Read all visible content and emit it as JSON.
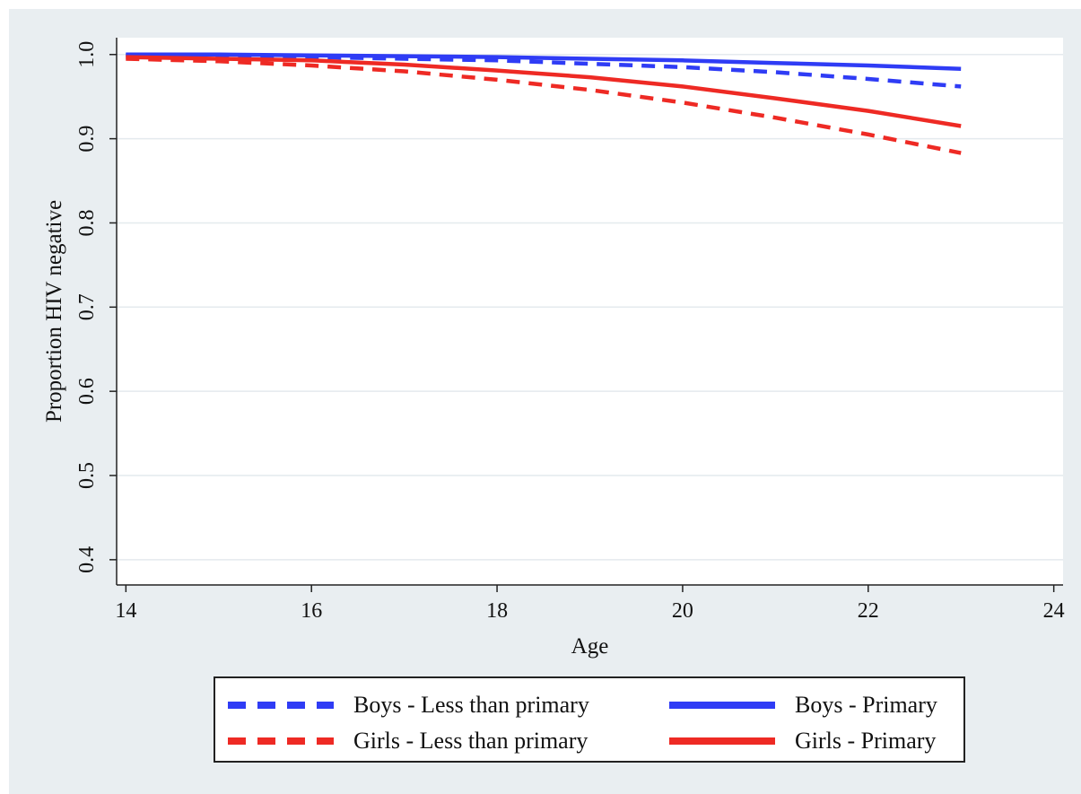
{
  "chart_data": {
    "type": "line",
    "xlabel": "Age",
    "ylabel": "Proportion HIV negative",
    "xlim": [
      13.9,
      24.1
    ],
    "ylim": [
      0.37,
      1.02
    ],
    "xticks": [
      "14",
      "16",
      "18",
      "20",
      "22",
      "24"
    ],
    "yticks": [
      "0.4",
      "0.5",
      "0.6",
      "0.7",
      "0.8",
      "0.9",
      "1.0"
    ],
    "grid": true,
    "legend_position": "bottom",
    "series": [
      {
        "name": "Boys - Less than primary",
        "color": "#2f3cf5",
        "style": "dashed",
        "x": [
          14,
          15,
          16,
          17,
          18,
          19,
          20,
          21,
          22,
          23
        ],
        "y": [
          0.999,
          0.998,
          0.997,
          0.995,
          0.993,
          0.989,
          0.985,
          0.979,
          0.971,
          0.962
        ]
      },
      {
        "name": "Boys - Primary",
        "color": "#2f3cf5",
        "style": "solid",
        "x": [
          14,
          15,
          16,
          17,
          18,
          19,
          20,
          21,
          22,
          23
        ],
        "y": [
          1.0,
          1.0,
          0.999,
          0.998,
          0.997,
          0.995,
          0.993,
          0.99,
          0.987,
          0.983
        ]
      },
      {
        "name": "Girls - Less than primary",
        "color": "#ee2a24",
        "style": "dashed",
        "x": [
          14,
          15,
          16,
          17,
          18,
          19,
          20,
          21,
          22,
          23
        ],
        "y": [
          0.995,
          0.992,
          0.987,
          0.98,
          0.97,
          0.958,
          0.943,
          0.925,
          0.905,
          0.883
        ]
      },
      {
        "name": "Girls - Primary",
        "color": "#ee2a24",
        "style": "solid",
        "x": [
          14,
          15,
          16,
          17,
          18,
          19,
          20,
          21,
          22,
          23
        ],
        "y": [
          0.997,
          0.995,
          0.993,
          0.988,
          0.981,
          0.973,
          0.962,
          0.948,
          0.933,
          0.915
        ]
      }
    ]
  },
  "legend": {
    "items": [
      {
        "label": "Boys - Less than primary",
        "color": "#2f3cf5",
        "style": "dashed"
      },
      {
        "label": "Boys - Primary",
        "color": "#2f3cf5",
        "style": "solid"
      },
      {
        "label": "Girls - Less than primary",
        "color": "#ee2a24",
        "style": "dashed"
      },
      {
        "label": "Girls - Primary",
        "color": "#ee2a24",
        "style": "solid"
      }
    ]
  }
}
